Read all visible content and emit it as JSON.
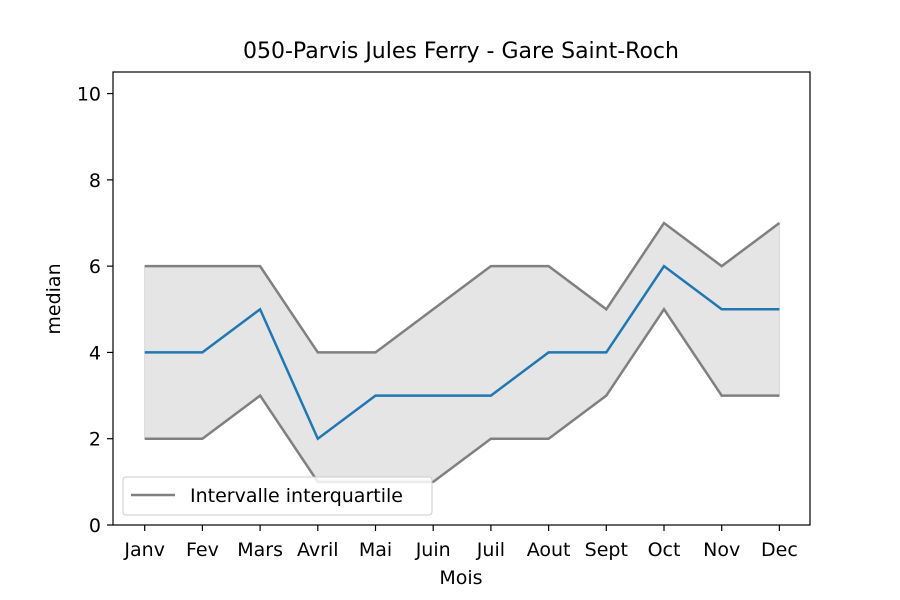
{
  "chart_data": {
    "type": "line",
    "title": "050-Parvis Jules Ferry - Gare Saint-Roch",
    "xlabel": "Mois",
    "ylabel": "median",
    "ylim": [
      0,
      10.5
    ],
    "yticks": [
      0,
      2,
      4,
      6,
      8,
      10
    ],
    "categories": [
      "Janv",
      "Fev",
      "Mars",
      "Avril",
      "Mai",
      "Juin",
      "Juil",
      "Aout",
      "Sept",
      "Oct",
      "Nov",
      "Dec"
    ],
    "series": [
      {
        "name": "median",
        "values": [
          4,
          4,
          5,
          2,
          3,
          3,
          3,
          4,
          4,
          6,
          5,
          5
        ]
      },
      {
        "name": "q1",
        "values": [
          2,
          2,
          3,
          1,
          1,
          1,
          2,
          2,
          3,
          5,
          3,
          3
        ]
      },
      {
        "name": "q3",
        "values": [
          6,
          6,
          6,
          4,
          4,
          5,
          6,
          6,
          5,
          7,
          6,
          7
        ]
      }
    ],
    "legend": {
      "label": "Intervalle interquartile",
      "placement": "lower-left"
    },
    "colors": {
      "median": "#1f77b4",
      "quartiles": "#808080",
      "band": "#e5e5e5"
    }
  }
}
